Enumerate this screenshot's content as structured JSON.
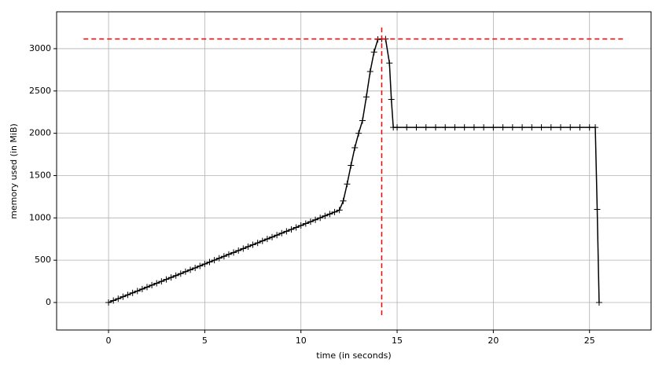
{
  "chart_data": {
    "type": "line",
    "xlabel": "time (in seconds)",
    "ylabel": "memory used (in MiB)",
    "x": [
      0,
      0.25,
      0.5,
      0.75,
      1,
      1.25,
      1.5,
      1.75,
      2,
      2.25,
      2.5,
      2.75,
      3,
      3.25,
      3.5,
      3.75,
      4,
      4.25,
      4.5,
      4.75,
      5,
      5.25,
      5.5,
      5.75,
      6,
      6.25,
      6.5,
      6.75,
      7,
      7.25,
      7.5,
      7.75,
      8,
      8.25,
      8.5,
      8.75,
      9,
      9.25,
      9.5,
      9.75,
      10,
      10.25,
      10.5,
      10.75,
      11,
      11.25,
      11.5,
      11.75,
      12,
      12.2,
      12.4,
      12.6,
      12.8,
      13,
      13.2,
      13.4,
      13.6,
      13.8,
      14,
      14.2,
      14.4,
      14.6,
      14.7,
      14.8,
      15,
      15.5,
      16,
      16.5,
      17,
      17.5,
      18,
      18.5,
      19,
      19.5,
      20,
      20.5,
      21,
      21.5,
      22,
      22.5,
      23,
      23.5,
      24,
      24.5,
      25,
      25.3,
      25.4,
      25.5
    ],
    "series": [
      {
        "color": "#000000",
        "values": [
          0,
          23,
          45,
          68,
          91,
          114,
          136,
          159,
          182,
          205,
          227,
          250,
          273,
          296,
          318,
          341,
          364,
          387,
          409,
          432,
          455,
          478,
          500,
          523,
          546,
          569,
          591,
          614,
          637,
          660,
          682,
          705,
          728,
          751,
          773,
          796,
          819,
          842,
          864,
          887,
          910,
          933,
          955,
          978,
          1001,
          1024,
          1046,
          1069,
          1092,
          1200,
          1400,
          1620,
          1830,
          2000,
          2150,
          2430,
          2730,
          2960,
          3110,
          3115,
          3115,
          2830,
          2400,
          2070,
          2070,
          2070,
          2070,
          2070,
          2070,
          2070,
          2070,
          2070,
          2070,
          2070,
          2070,
          2070,
          2070,
          2070,
          2070,
          2070,
          2070,
          2070,
          2070,
          2070,
          2070,
          2070,
          1100,
          0
        ]
      }
    ],
    "max_memory": {
      "value": 3115,
      "from": -1.3,
      "to": 26.8,
      "color": "#ff0000"
    },
    "max_time": {
      "value": 14.2,
      "from": -150,
      "to": 3260,
      "color": "#ff0000"
    },
    "xlim": [
      -2.7,
      28.2
    ],
    "ylim": [
      -325,
      3436
    ],
    "xticks": [
      0,
      5,
      10,
      15,
      20,
      25
    ],
    "yticks": [
      0,
      500,
      1000,
      1500,
      2000,
      2500,
      3000
    ],
    "grid": true
  }
}
